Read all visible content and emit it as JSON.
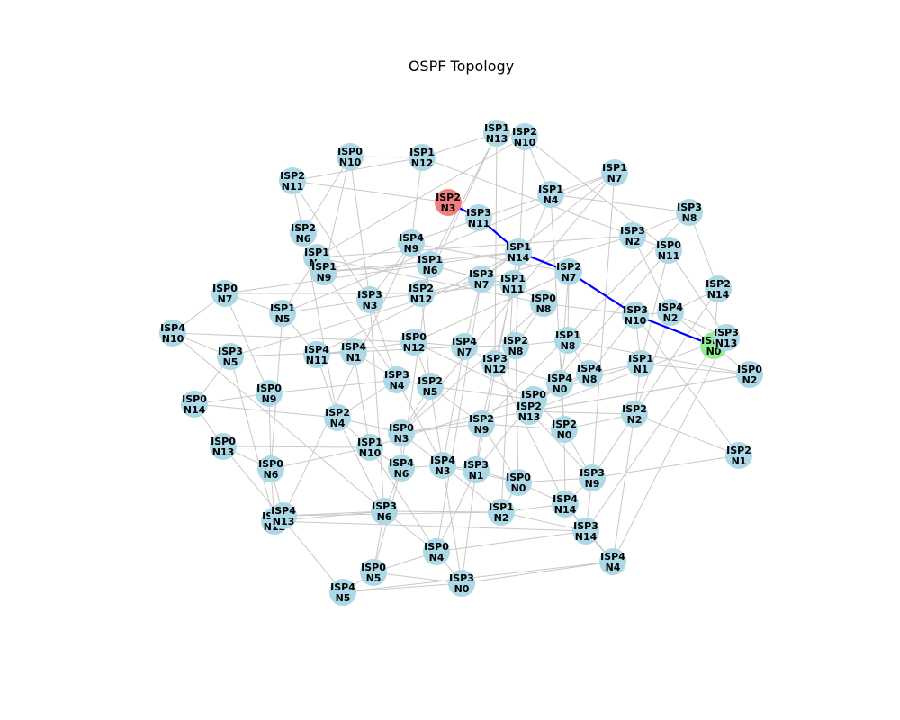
{
  "title": "OSPF Topology",
  "colors": {
    "node_default": "#add8e6",
    "node_source": "#f08080",
    "node_target": "#90ee90",
    "edge_default": "#c8c8c8",
    "edge_path": "#0000ff"
  },
  "nodes": [
    {
      "id": "ISP0-N0",
      "l1": "ISP0",
      "l2": "N0"
    },
    {
      "id": "ISP0-N1",
      "l1": "ISP0",
      "l2": "N1"
    },
    {
      "id": "ISP0-N2",
      "l1": "ISP0",
      "l2": "N2"
    },
    {
      "id": "ISP0-N3",
      "l1": "ISP0",
      "l2": "N3"
    },
    {
      "id": "ISP0-N4",
      "l1": "ISP0",
      "l2": "N4"
    },
    {
      "id": "ISP0-N5",
      "l1": "ISP0",
      "l2": "N5"
    },
    {
      "id": "ISP0-N6",
      "l1": "ISP0",
      "l2": "N6"
    },
    {
      "id": "ISP0-N7",
      "l1": "ISP0",
      "l2": "N7"
    },
    {
      "id": "ISP0-N8",
      "l1": "ISP0",
      "l2": "N8"
    },
    {
      "id": "ISP0-N9",
      "l1": "ISP0",
      "l2": "N9"
    },
    {
      "id": "ISP0-N10",
      "l1": "ISP0",
      "l2": "N10"
    },
    {
      "id": "ISP0-N11",
      "l1": "ISP0",
      "l2": "N11"
    },
    {
      "id": "ISP0-N12",
      "l1": "ISP0",
      "l2": "N12"
    },
    {
      "id": "ISP0-N13",
      "l1": "ISP0",
      "l2": "N13"
    },
    {
      "id": "ISP0-N14",
      "l1": "ISP0",
      "l2": "N14"
    },
    {
      "id": "ISP1-N0",
      "l1": "ISP1",
      "l2": "N0"
    },
    {
      "id": "ISP1-N1",
      "l1": "ISP1",
      "l2": "N1"
    },
    {
      "id": "ISP1-N2",
      "l1": "ISP1",
      "l2": "N2"
    },
    {
      "id": "ISP1-N3",
      "l1": "ISP1",
      "l2": "N3"
    },
    {
      "id": "ISP1-N4",
      "l1": "ISP1",
      "l2": "N4"
    },
    {
      "id": "ISP1-N5",
      "l1": "ISP1",
      "l2": "N5"
    },
    {
      "id": "ISP1-N6",
      "l1": "ISP1",
      "l2": "N6"
    },
    {
      "id": "ISP1-N7",
      "l1": "ISP1",
      "l2": "N7"
    },
    {
      "id": "ISP1-N8",
      "l1": "ISP1",
      "l2": "N8"
    },
    {
      "id": "ISP1-N9",
      "l1": "ISP1",
      "l2": "N9"
    },
    {
      "id": "ISP1-N10",
      "l1": "ISP1",
      "l2": "N10"
    },
    {
      "id": "ISP1-N11",
      "l1": "ISP1",
      "l2": "N11"
    },
    {
      "id": "ISP1-N12",
      "l1": "ISP1",
      "l2": "N12"
    },
    {
      "id": "ISP1-N13",
      "l1": "ISP1",
      "l2": "N13"
    },
    {
      "id": "ISP1-N14",
      "l1": "ISP1",
      "l2": "N14"
    },
    {
      "id": "ISP2-N0",
      "l1": "ISP2",
      "l2": "N0"
    },
    {
      "id": "ISP2-N1",
      "l1": "ISP2",
      "l2": "N1"
    },
    {
      "id": "ISP2-N2",
      "l1": "ISP2",
      "l2": "N2"
    },
    {
      "id": "ISP2-N3",
      "l1": "ISP2",
      "l2": "N3",
      "role": "source"
    },
    {
      "id": "ISP2-N4",
      "l1": "ISP2",
      "l2": "N4"
    },
    {
      "id": "ISP2-N5",
      "l1": "ISP2",
      "l2": "N5"
    },
    {
      "id": "ISP2-N6",
      "l1": "ISP2",
      "l2": "N6"
    },
    {
      "id": "ISP2-N7",
      "l1": "ISP2",
      "l2": "N7"
    },
    {
      "id": "ISP2-N8",
      "l1": "ISP2",
      "l2": "N8"
    },
    {
      "id": "ISP2-N9",
      "l1": "ISP2",
      "l2": "N9"
    },
    {
      "id": "ISP2-N10",
      "l1": "ISP2",
      "l2": "N10"
    },
    {
      "id": "ISP2-N11",
      "l1": "ISP2",
      "l2": "N11"
    },
    {
      "id": "ISP2-N12",
      "l1": "ISP2",
      "l2": "N12"
    },
    {
      "id": "ISP2-N13",
      "l1": "ISP2",
      "l2": "N13"
    },
    {
      "id": "ISP2-N14",
      "l1": "ISP2",
      "l2": "N14"
    },
    {
      "id": "ISP3-N0",
      "l1": "ISP3",
      "l2": "N0"
    },
    {
      "id": "ISP3-N1",
      "l1": "ISP3",
      "l2": "N1"
    },
    {
      "id": "ISP3-N2",
      "l1": "ISP3",
      "l2": "N2"
    },
    {
      "id": "ISP3-N3",
      "l1": "ISP3",
      "l2": "N3"
    },
    {
      "id": "ISP3-N4",
      "l1": "ISP3",
      "l2": "N4"
    },
    {
      "id": "ISP3-N5",
      "l1": "ISP3",
      "l2": "N5"
    },
    {
      "id": "ISP3-N6",
      "l1": "ISP3",
      "l2": "N6"
    },
    {
      "id": "ISP3-N7",
      "l1": "ISP3",
      "l2": "N7"
    },
    {
      "id": "ISP3-N8",
      "l1": "ISP3",
      "l2": "N8"
    },
    {
      "id": "ISP3-N9",
      "l1": "ISP3",
      "l2": "N9"
    },
    {
      "id": "ISP3-N10",
      "l1": "ISP3",
      "l2": "N10"
    },
    {
      "id": "ISP3-N11",
      "l1": "ISP3",
      "l2": "N11"
    },
    {
      "id": "ISP3-N12",
      "l1": "ISP3",
      "l2": "N12"
    },
    {
      "id": "ISP3-N13",
      "l1": "ISP3",
      "l2": "N13"
    },
    {
      "id": "ISP3-N14",
      "l1": "ISP3",
      "l2": "N14"
    },
    {
      "id": "ISP4-N0",
      "l1": "ISP4",
      "l2": "N0"
    },
    {
      "id": "ISP4-N1",
      "l1": "ISP4",
      "l2": "N1"
    },
    {
      "id": "ISP4-N2",
      "l1": "ISP4",
      "l2": "N2"
    },
    {
      "id": "ISP4-N3",
      "l1": "ISP4",
      "l2": "N3"
    },
    {
      "id": "ISP4-N4",
      "l1": "ISP4",
      "l2": "N4"
    },
    {
      "id": "ISP4-N5",
      "l1": "ISP4",
      "l2": "N5"
    },
    {
      "id": "ISP4-N6",
      "l1": "ISP4",
      "l2": "N6"
    },
    {
      "id": "ISP4-N7",
      "l1": "ISP4",
      "l2": "N7"
    },
    {
      "id": "ISP4-N8",
      "l1": "ISP4",
      "l2": "N8"
    },
    {
      "id": "ISP4-N9",
      "l1": "ISP4",
      "l2": "N9"
    },
    {
      "id": "ISP4-N10",
      "l1": "ISP4",
      "l2": "N10"
    },
    {
      "id": "ISP4-N11",
      "l1": "ISP4",
      "l2": "N11"
    },
    {
      "id": "ISP4-N12",
      "l1": "ISP4",
      "l2": "N12"
    },
    {
      "id": "ISP4-N13",
      "l1": "ISP4",
      "l2": "N13"
    },
    {
      "id": "ISP4-N14",
      "l1": "ISP4",
      "l2": "N14"
    }
  ],
  "path": [
    "ISP2-N3",
    "ISP3-N11",
    "ISP1-N14",
    "ISP2-N7",
    "ISP3-N10",
    "ISP1-N0"
  ],
  "edges": [
    [
      "ISP2-N3",
      "ISP3-N11"
    ],
    [
      "ISP3-N11",
      "ISP1-N14"
    ],
    [
      "ISP1-N14",
      "ISP2-N7"
    ],
    [
      "ISP2-N7",
      "ISP3-N10"
    ],
    [
      "ISP3-N10",
      "ISP1-N0"
    ],
    [
      "ISP0-N10",
      "ISP1-N12"
    ],
    [
      "ISP0-N10",
      "ISP2-N6"
    ],
    [
      "ISP0-N10",
      "ISP3-N3"
    ],
    [
      "ISP0-N10",
      "ISP1-N9"
    ],
    [
      "ISP1-N13",
      "ISP2-N10"
    ],
    [
      "ISP1-N13",
      "ISP1-N12"
    ],
    [
      "ISP1-N13",
      "ISP1-N6"
    ],
    [
      "ISP1-N13",
      "ISP2-N12"
    ],
    [
      "ISP1-N13",
      "ISP3-N12"
    ],
    [
      "ISP2-N10",
      "ISP1-N4"
    ],
    [
      "ISP2-N10",
      "ISP2-N8"
    ],
    [
      "ISP2-N10",
      "ISP1-N3"
    ],
    [
      "ISP2-N10",
      "ISP0-N11"
    ],
    [
      "ISP1-N12",
      "ISP2-N11"
    ],
    [
      "ISP1-N12",
      "ISP4-N9"
    ],
    [
      "ISP1-N12",
      "ISP3-N2"
    ],
    [
      "ISP2-N11",
      "ISP2-N3"
    ],
    [
      "ISP2-N11",
      "ISP2-N6"
    ],
    [
      "ISP2-N11",
      "ISP3-N3"
    ],
    [
      "ISP1-N7",
      "ISP1-N4"
    ],
    [
      "ISP1-N7",
      "ISP3-N7"
    ],
    [
      "ISP1-N7",
      "ISP0-N3"
    ],
    [
      "ISP1-N7",
      "ISP3-N9"
    ],
    [
      "ISP1-N7",
      "ISP1-N5"
    ],
    [
      "ISP1-N4",
      "ISP1-N9"
    ],
    [
      "ISP1-N4",
      "ISP3-N8"
    ],
    [
      "ISP1-N4",
      "ISP1-N11"
    ],
    [
      "ISP1-N4",
      "ISP2-N0"
    ],
    [
      "ISP3-N8",
      "ISP2-N14"
    ],
    [
      "ISP3-N8",
      "ISP3-N2"
    ],
    [
      "ISP3-N8",
      "ISP2-N9"
    ],
    [
      "ISP3-N2",
      "ISP0-N11"
    ],
    [
      "ISP3-N2",
      "ISP4-N2"
    ],
    [
      "ISP3-N2",
      "ISP3-N5"
    ],
    [
      "ISP3-N2",
      "ISP1-N3"
    ],
    [
      "ISP0-N11",
      "ISP1-N1"
    ],
    [
      "ISP0-N11",
      "ISP2-N13"
    ],
    [
      "ISP0-N11",
      "ISP3-N13"
    ],
    [
      "ISP2-N14",
      "ISP4-N2"
    ],
    [
      "ISP2-N14",
      "ISP1-N0"
    ],
    [
      "ISP2-N14",
      "ISP3-N9"
    ],
    [
      "ISP2-N6",
      "ISP1-N3"
    ],
    [
      "ISP2-N6",
      "ISP1-N9"
    ],
    [
      "ISP2-N6",
      "ISP2-N4"
    ],
    [
      "ISP4-N9",
      "ISP1-N6"
    ],
    [
      "ISP4-N9",
      "ISP3-N3"
    ],
    [
      "ISP4-N9",
      "ISP4-N13"
    ],
    [
      "ISP4-N9",
      "ISP2-N7"
    ],
    [
      "ISP1-N3",
      "ISP1-N9"
    ],
    [
      "ISP1-N3",
      "ISP1-N5"
    ],
    [
      "ISP1-N3",
      "ISP0-N8"
    ],
    [
      "ISP1-N9",
      "ISP1-N6"
    ],
    [
      "ISP1-N9",
      "ISP3-N4"
    ],
    [
      "ISP1-N9",
      "ISP1-N14"
    ],
    [
      "ISP1-N6",
      "ISP2-N12"
    ],
    [
      "ISP1-N6",
      "ISP3-N7"
    ],
    [
      "ISP1-N6",
      "ISP4-N6"
    ],
    [
      "ISP1-N14",
      "ISP0-N7"
    ],
    [
      "ISP1-N14",
      "ISP3-N7"
    ],
    [
      "ISP1-N14",
      "ISP3-N1"
    ],
    [
      "ISP1-N14",
      "ISP4-N11"
    ],
    [
      "ISP2-N7",
      "ISP4-N0"
    ],
    [
      "ISP2-N7",
      "ISP1-N8"
    ],
    [
      "ISP2-N7",
      "ISP0-N12"
    ],
    [
      "ISP0-N7",
      "ISP1-N5"
    ],
    [
      "ISP0-N7",
      "ISP4-N10"
    ],
    [
      "ISP0-N7",
      "ISP0-N9"
    ],
    [
      "ISP0-N7",
      "ISP2-N12"
    ],
    [
      "ISP1-N5",
      "ISP4-N11"
    ],
    [
      "ISP1-N5",
      "ISP3-N3"
    ],
    [
      "ISP1-N5",
      "ISP0-N6"
    ],
    [
      "ISP3-N3",
      "ISP2-N12"
    ],
    [
      "ISP3-N3",
      "ISP3-N4"
    ],
    [
      "ISP3-N3",
      "ISP3-N6"
    ],
    [
      "ISP2-N12",
      "ISP3-N7"
    ],
    [
      "ISP2-N12",
      "ISP1-N11"
    ],
    [
      "ISP2-N12",
      "ISP2-N5"
    ],
    [
      "ISP3-N7",
      "ISP1-N11"
    ],
    [
      "ISP3-N7",
      "ISP4-N7"
    ],
    [
      "ISP3-N7",
      "ISP0-N4"
    ],
    [
      "ISP1-N11",
      "ISP0-N8"
    ],
    [
      "ISP1-N11",
      "ISP3-N12"
    ],
    [
      "ISP1-N11",
      "ISP1-N2"
    ],
    [
      "ISP0-N8",
      "ISP3-N10"
    ],
    [
      "ISP0-N8",
      "ISP2-N8"
    ],
    [
      "ISP0-N8",
      "ISP0-N3"
    ],
    [
      "ISP3-N10",
      "ISP4-N2"
    ],
    [
      "ISP3-N10",
      "ISP1-N1"
    ],
    [
      "ISP3-N10",
      "ISP4-N8"
    ],
    [
      "ISP3-N10",
      "ISP2-N1"
    ],
    [
      "ISP4-N2",
      "ISP1-N0"
    ],
    [
      "ISP4-N2",
      "ISP3-N13"
    ],
    [
      "ISP4-N2",
      "ISP2-N2"
    ],
    [
      "ISP1-N0",
      "ISP3-N13"
    ],
    [
      "ISP1-N0",
      "ISP0-N2"
    ],
    [
      "ISP1-N0",
      "ISP3-N14"
    ],
    [
      "ISP3-N13",
      "ISP2-N13"
    ],
    [
      "ISP3-N13",
      "ISP4-N4"
    ],
    [
      "ISP4-N10",
      "ISP3-N5"
    ],
    [
      "ISP4-N10",
      "ISP0-N12"
    ],
    [
      "ISP4-N10",
      "ISP3-N6"
    ],
    [
      "ISP3-N5",
      "ISP4-N1"
    ],
    [
      "ISP3-N5",
      "ISP0-N14"
    ],
    [
      "ISP3-N5",
      "ISP4-N12"
    ],
    [
      "ISP4-N11",
      "ISP4-N1"
    ],
    [
      "ISP4-N11",
      "ISP0-N12"
    ],
    [
      "ISP4-N11",
      "ISP2-N4"
    ],
    [
      "ISP4-N1",
      "ISP3-N4"
    ],
    [
      "ISP4-N1",
      "ISP1-N10"
    ],
    [
      "ISP4-N1",
      "ISP4-N7"
    ],
    [
      "ISP0-N12",
      "ISP4-N7"
    ],
    [
      "ISP0-N12",
      "ISP2-N5"
    ],
    [
      "ISP0-N12",
      "ISP0-N1"
    ],
    [
      "ISP4-N7",
      "ISP2-N8"
    ],
    [
      "ISP4-N7",
      "ISP3-N12"
    ],
    [
      "ISP4-N7",
      "ISP4-N3"
    ],
    [
      "ISP2-N8",
      "ISP1-N8"
    ],
    [
      "ISP2-N8",
      "ISP3-N12"
    ],
    [
      "ISP2-N8",
      "ISP0-N0"
    ],
    [
      "ISP1-N8",
      "ISP4-N0"
    ],
    [
      "ISP1-N8",
      "ISP4-N8"
    ],
    [
      "ISP1-N8",
      "ISP0-N2"
    ],
    [
      "ISP3-N12",
      "ISP4-N0"
    ],
    [
      "ISP3-N12",
      "ISP2-N9"
    ],
    [
      "ISP3-N12",
      "ISP4-N14"
    ],
    [
      "ISP4-N0",
      "ISP4-N8"
    ],
    [
      "ISP4-N0",
      "ISP2-N13"
    ],
    [
      "ISP4-N0",
      "ISP2-N0"
    ],
    [
      "ISP4-N8",
      "ISP1-N1"
    ],
    [
      "ISP4-N8",
      "ISP0-N1"
    ],
    [
      "ISP1-N1",
      "ISP0-N2"
    ],
    [
      "ISP1-N1",
      "ISP2-N2"
    ],
    [
      "ISP1-N1",
      "ISP1-N10"
    ],
    [
      "ISP0-N2",
      "ISP2-N13"
    ],
    [
      "ISP0-N2",
      "ISP0-N3"
    ],
    [
      "ISP0-N9",
      "ISP3-N4"
    ],
    [
      "ISP0-N9",
      "ISP0-N14"
    ],
    [
      "ISP0-N9",
      "ISP0-N6"
    ],
    [
      "ISP3-N4",
      "ISP2-N5"
    ],
    [
      "ISP3-N4",
      "ISP2-N4"
    ],
    [
      "ISP3-N4",
      "ISP4-N3"
    ],
    [
      "ISP2-N5",
      "ISP0-N1"
    ],
    [
      "ISP2-N5",
      "ISP0-N3"
    ],
    [
      "ISP2-N5",
      "ISP2-N9"
    ],
    [
      "ISP0-N1",
      "ISP2-N13"
    ],
    [
      "ISP0-N1",
      "ISP2-N0"
    ],
    [
      "ISP0-N1",
      "ISP3-N1"
    ],
    [
      "ISP2-N13",
      "ISP2-N2"
    ],
    [
      "ISP2-N13",
      "ISP3-N9"
    ],
    [
      "ISP0-N14",
      "ISP0-N13"
    ],
    [
      "ISP0-N14",
      "ISP2-N4"
    ],
    [
      "ISP2-N4",
      "ISP0-N3"
    ],
    [
      "ISP2-N4",
      "ISP1-N10"
    ],
    [
      "ISP2-N4",
      "ISP3-N6"
    ],
    [
      "ISP0-N3",
      "ISP2-N9"
    ],
    [
      "ISP0-N3",
      "ISP4-N6"
    ],
    [
      "ISP0-N3",
      "ISP4-N3"
    ],
    [
      "ISP2-N9",
      "ISP2-N0"
    ],
    [
      "ISP2-N9",
      "ISP3-N1"
    ],
    [
      "ISP2-N9",
      "ISP0-N0"
    ],
    [
      "ISP2-N0",
      "ISP2-N2"
    ],
    [
      "ISP2-N0",
      "ISP3-N9"
    ],
    [
      "ISP2-N0",
      "ISP4-N14"
    ],
    [
      "ISP2-N2",
      "ISP2-N1"
    ],
    [
      "ISP2-N2",
      "ISP4-N4"
    ],
    [
      "ISP0-N13",
      "ISP1-N10"
    ],
    [
      "ISP0-N13",
      "ISP0-N6"
    ],
    [
      "ISP0-N13",
      "ISP4-N5"
    ],
    [
      "ISP1-N10",
      "ISP4-N6"
    ],
    [
      "ISP1-N10",
      "ISP0-N6"
    ],
    [
      "ISP1-N10",
      "ISP0-N4"
    ],
    [
      "ISP4-N6",
      "ISP4-N3"
    ],
    [
      "ISP4-N6",
      "ISP3-N6"
    ],
    [
      "ISP4-N6",
      "ISP0-N5"
    ],
    [
      "ISP4-N3",
      "ISP3-N1"
    ],
    [
      "ISP4-N3",
      "ISP0-N0"
    ],
    [
      "ISP4-N3",
      "ISP1-N2"
    ],
    [
      "ISP3-N1",
      "ISP0-N0"
    ],
    [
      "ISP3-N1",
      "ISP3-N0"
    ],
    [
      "ISP3-N1",
      "ISP0-N4"
    ],
    [
      "ISP0-N0",
      "ISP3-N9"
    ],
    [
      "ISP0-N0",
      "ISP4-N14"
    ],
    [
      "ISP0-N0",
      "ISP1-N2"
    ],
    [
      "ISP3-N9",
      "ISP4-N14"
    ],
    [
      "ISP3-N9",
      "ISP2-N1"
    ],
    [
      "ISP3-N9",
      "ISP3-N14"
    ],
    [
      "ISP0-N6",
      "ISP4-N13"
    ],
    [
      "ISP0-N6",
      "ISP4-N12"
    ],
    [
      "ISP4-N13",
      "ISP4-N12"
    ],
    [
      "ISP4-N13",
      "ISP3-N6"
    ],
    [
      "ISP4-N13",
      "ISP1-N2"
    ],
    [
      "ISP4-N12",
      "ISP3-N6"
    ],
    [
      "ISP4-N12",
      "ISP3-N14"
    ],
    [
      "ISP3-N6",
      "ISP1-N2"
    ],
    [
      "ISP3-N6",
      "ISP0-N4"
    ],
    [
      "ISP3-N6",
      "ISP0-N5"
    ],
    [
      "ISP1-N2",
      "ISP4-N14"
    ],
    [
      "ISP1-N2",
      "ISP3-N14"
    ],
    [
      "ISP4-N14",
      "ISP3-N14"
    ],
    [
      "ISP4-N14",
      "ISP4-N4"
    ],
    [
      "ISP3-N14",
      "ISP4-N4"
    ],
    [
      "ISP3-N14",
      "ISP0-N4"
    ],
    [
      "ISP0-N4",
      "ISP3-N0"
    ],
    [
      "ISP0-N4",
      "ISP0-N5"
    ],
    [
      "ISP0-N5",
      "ISP4-N5"
    ],
    [
      "ISP0-N5",
      "ISP3-N0"
    ],
    [
      "ISP4-N5",
      "ISP3-N0"
    ],
    [
      "ISP4-N5",
      "ISP4-N4"
    ],
    [
      "ISP3-N0",
      "ISP4-N4"
    ],
    [
      "ISP3-N0",
      "ISP2-N5"
    ]
  ]
}
